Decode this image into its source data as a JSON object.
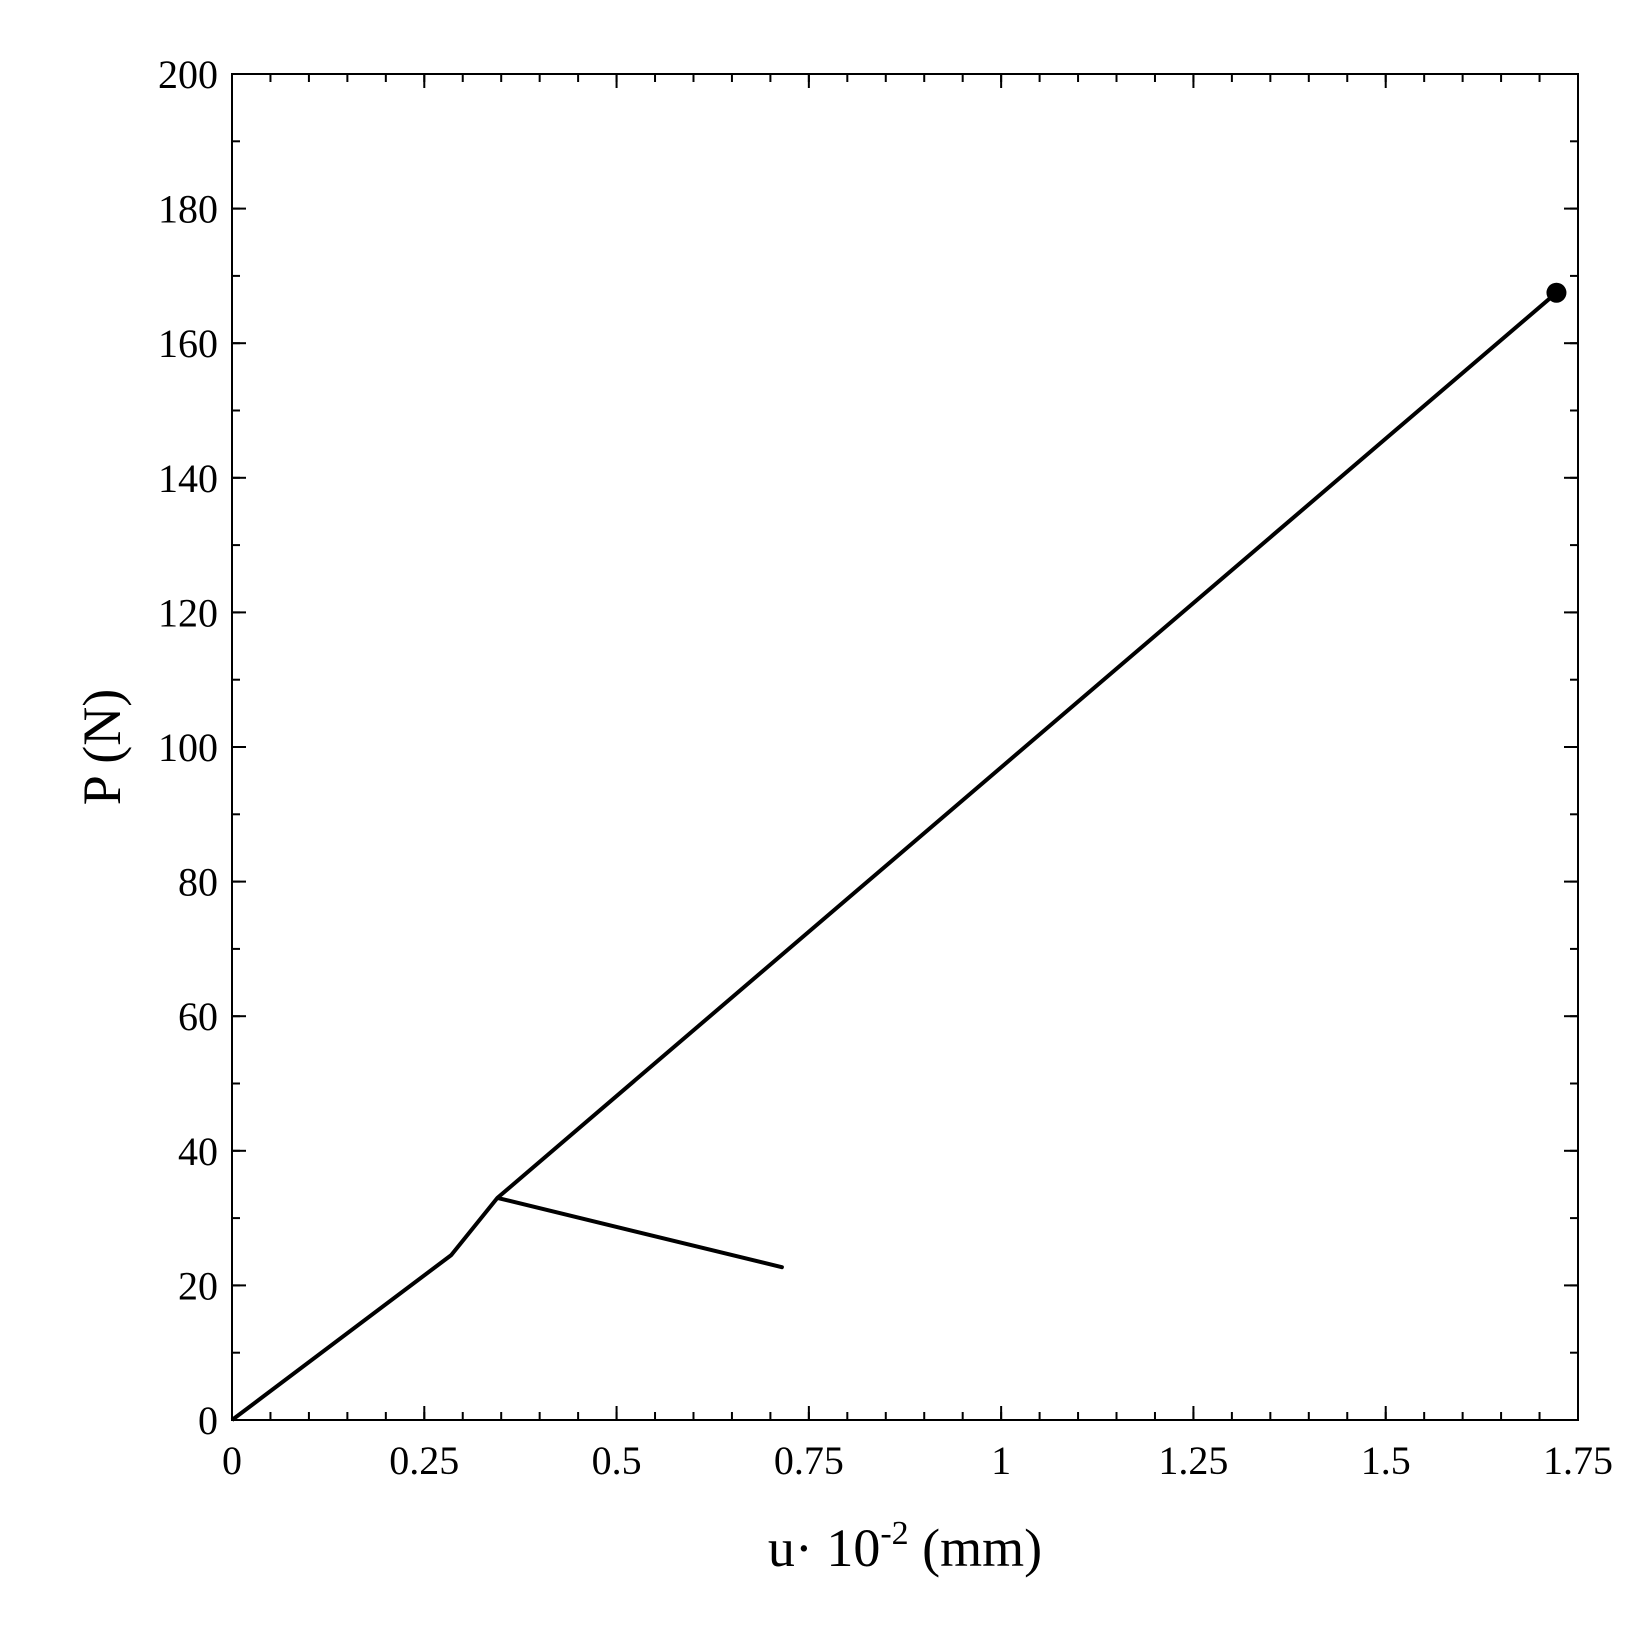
{
  "chart_data": {
    "type": "line",
    "title": "",
    "xlabel": {
      "base": "u· 10",
      "sup": "-2",
      "suffix": " (mm)"
    },
    "ylabel": "P (N)",
    "xlim": [
      0,
      1.75
    ],
    "ylim": [
      0,
      200
    ],
    "x_major_ticks": [
      0,
      0.25,
      0.5,
      0.75,
      1,
      1.25,
      1.5,
      1.75
    ],
    "x_tick_labels": [
      "0",
      "0.25",
      "0.5",
      "0.75",
      "1",
      "1.25",
      "1.5",
      "1.75"
    ],
    "x_minor_step": 0.05,
    "y_major_ticks": [
      0,
      20,
      40,
      60,
      80,
      100,
      120,
      140,
      160,
      180,
      200
    ],
    "y_tick_labels": [
      "0",
      "20",
      "40",
      "60",
      "80",
      "100",
      "120",
      "140",
      "160",
      "180",
      "200"
    ],
    "y_minor_step": 10,
    "grid": false,
    "legend": "none",
    "series": [
      {
        "color": "#000000",
        "x": [
          0,
          0.285,
          0.345,
          0.715,
          0.345,
          1.722
        ],
        "y": [
          0,
          24.5,
          33,
          22.7,
          33,
          167.5
        ]
      }
    ],
    "marker": {
      "x": 1.722,
      "y": 167.5,
      "color": "#000000"
    }
  }
}
